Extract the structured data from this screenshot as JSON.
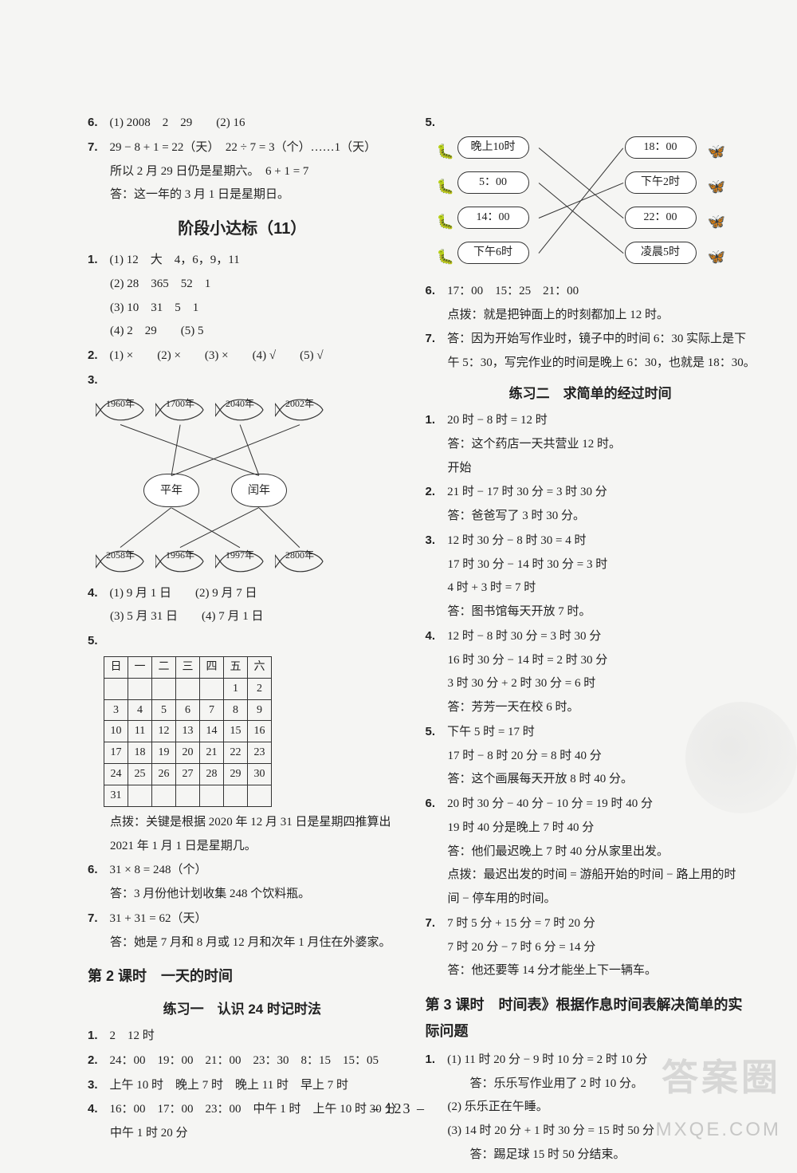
{
  "page_number": "– 123 –",
  "watermarks": {
    "brand": "答案圈",
    "url": "MXQE.COM"
  },
  "left": {
    "q6": "(1) 2008　2　29　　(2) 16",
    "q7_l1": "29 − 8 + 1 = 22（天）　22 ÷ 7 = 3（个）……1（天）",
    "q7_l2": "所以 2 月 29 日仍是星期六。　6 + 1 = 7",
    "q7_l3": "答：这一年的 3 月 1 日是星期日。",
    "stage_title": "阶段小达标（11）",
    "s1_1": "(1) 12　大　4，6，9，11",
    "s1_2": "(2) 28　365　52　1",
    "s1_3": "(3) 10　31　5　1",
    "s1_4": "(4) 2　29　　(5) 5",
    "s2": "(1) ×　　(2) ×　　(3) ×　　(4) √　　(5) √",
    "fish": {
      "top": [
        "1960年",
        "1700年",
        "2040年",
        "2002年"
      ],
      "mid": [
        "平年",
        "闰年"
      ],
      "bot": [
        "2058年",
        "1996年",
        "1997年",
        "2800年"
      ]
    },
    "s4_1": "(1) 9 月 1 日　　(2) 9 月 7 日",
    "s4_2": "(3) 5 月 31 日　　(4) 7 月 1 日",
    "calendar": {
      "header": [
        "日",
        "一",
        "二",
        "三",
        "四",
        "五",
        "六"
      ],
      "rows": [
        [
          "",
          "",
          "",
          "",
          "",
          "1",
          "2"
        ],
        [
          "3",
          "4",
          "5",
          "6",
          "7",
          "8",
          "9"
        ],
        [
          "10",
          "11",
          "12",
          "13",
          "14",
          "15",
          "16"
        ],
        [
          "17",
          "18",
          "19",
          "20",
          "21",
          "22",
          "23"
        ],
        [
          "24",
          "25",
          "26",
          "27",
          "28",
          "29",
          "30"
        ],
        [
          "31",
          "",
          "",
          "",
          "",
          "",
          ""
        ]
      ]
    },
    "s5_note1": "点拨：关键是根据 2020 年 12 月 31 日是星期四推算出",
    "s5_note2": "2021 年 1 月 1 日是星期几。",
    "s6_l1": "31 × 8 = 248（个）",
    "s6_l2": "答：3 月份他计划收集 248 个饮料瓶。",
    "s7_l1": "31 + 31 = 62（天）",
    "s7_l2": "答：她是 7 月和 8 月或 12 月和次年 1 月住在外婆家。",
    "lesson2_title": "第 2 课时　一天的时间",
    "ex1_title": "练习一　认识 24 时记时法",
    "e1": "2　12 时",
    "e2": "24：00　19：00　21：00　23：30　8：15　15：05",
    "e3": "上午 10 时　晚上 7 时　晚上 11 时　早上 7 时",
    "e4_l1": "16：00　17：00　23：00　中午 1 时　上午 10 时 30 分",
    "e4_l2": "中午 1 时 20 分"
  },
  "right": {
    "match": {
      "left": [
        "晚上10时",
        "5：00",
        "14：00",
        "下午6时"
      ],
      "right": [
        "18：00",
        "下午2时",
        "22：00",
        "凌晨5时"
      ],
      "lines": [
        [
          0,
          2
        ],
        [
          1,
          3
        ],
        [
          2,
          1
        ],
        [
          3,
          0
        ]
      ]
    },
    "r6_l1": "17：00　15：25　21：00",
    "r6_l2": "点拨：就是把钟面上的时刻都加上 12 时。",
    "r7_l1": "答：因为开始写作业时，镜子中的时间 6：30 实际上是下",
    "r7_l2": "午 5：30，写完作业的时间是晚上 6：30，也就是 18：30。",
    "ex2_title": "练习二　求简单的经过时间",
    "p1_l1": "20 时 − 8 时 = 12 时",
    "p1_l2": "答：这个药店一天共营业 12 时。",
    "p1_l3": "开始",
    "p2_l1": "21 时 − 17 时 30 分 = 3 时 30 分",
    "p2_l2": "答：爸爸写了 3 时 30 分。",
    "p3_l1": "12 时 30 分 − 8 时 30 = 4 时",
    "p3_l2": "17 时 30 分 − 14 时 30 分 = 3 时",
    "p3_l3": "4 时 + 3 时 = 7 时",
    "p3_l4": "答：图书馆每天开放 7 时。",
    "p4_l1": "12 时 − 8 时 30 分 = 3 时 30 分",
    "p4_l2": "16 时 30 分 − 14 时 = 2 时 30 分",
    "p4_l3": "3 时 30 分 + 2 时 30 分 = 6 时",
    "p4_l4": "答：芳芳一天在校 6 时。",
    "p5_l1": "下午 5 时 = 17 时",
    "p5_l2": "17 时 − 8 时 20 分 = 8 时 40 分",
    "p5_l3": "答：这个画展每天开放 8 时 40 分。",
    "p6_l1": "20 时 30 分 − 40 分 − 10 分 = 19 时 40 分",
    "p6_l2": "19 时 40 分是晚上 7 时 40 分",
    "p6_l3": "答：他们最迟晚上 7 时 40 分从家里出发。",
    "p6_l4": "点拨：最迟出发的时间 = 游船开始的时间 − 路上用的时",
    "p6_l5": "间 − 停车用的时间。",
    "p7_l1": "7 时 5 分 + 15 分 = 7 时 20 分",
    "p7_l2": "7 时 20 分 − 7 时 6 分 = 14 分",
    "p7_l3": "答：他还要等 14 分才能坐上下一辆车。",
    "lesson3_title": "第 3 课时　时间表》根据作息时间表解决简单的实际问题",
    "q1_l1": "(1) 11 时 20 分 − 9 时 10 分 = 2 时 10 分",
    "q1_l2": "答：乐乐写作业用了 2 时 10 分。",
    "q1_l3": "(2) 乐乐正在午睡。",
    "q1_l4": "(3) 14 时 20 分 + 1 时 30 分 = 15 时 50 分",
    "q1_l5": "答：踢足球 15 时 50 分结束。"
  }
}
